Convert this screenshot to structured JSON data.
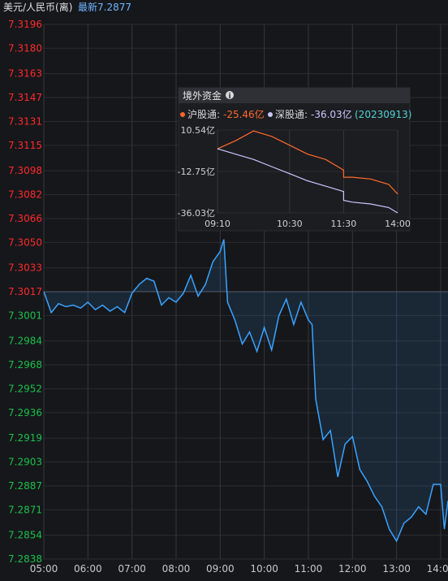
{
  "header": {
    "title": "美元/人民币(离)",
    "latest": "最新7.2877"
  },
  "colors": {
    "up": "#ff2a2a",
    "down": "#19c24a",
    "line": "#3aa3ff",
    "sh": "#ff6a2a",
    "sz": "#c9c7ff"
  },
  "chart_data": [
    {
      "type": "line",
      "title": "",
      "reference_price": 7.3017,
      "ylim": [
        7.2838,
        7.3196
      ],
      "y_ticks": [
        "7.3196",
        "7.3180",
        "7.3163",
        "7.3147",
        "7.3131",
        "7.3115",
        "7.3098",
        "7.3082",
        "7.3066",
        "7.3050",
        "7.3033",
        "7.3017",
        "7.3001",
        "7.2984",
        "7.2968",
        "7.2952",
        "7.2936",
        "7.2919",
        "7.2903",
        "7.2887",
        "7.2871",
        "7.2854",
        "7.2838"
      ],
      "x_ticks": [
        "05:00",
        "06:00",
        "07:00",
        "08:00",
        "09:00",
        "10:00",
        "11:00",
        "12:00",
        "13:00",
        "14:00"
      ],
      "grid": true,
      "series": [
        {
          "x": [
            "05:00",
            "05:10",
            "05:20",
            "05:30",
            "05:40",
            "05:50",
            "06:00",
            "06:10",
            "06:20",
            "06:30",
            "06:40",
            "06:50",
            "07:00",
            "07:10",
            "07:20",
            "07:30",
            "07:40",
            "07:50",
            "08:00",
            "08:10",
            "08:20",
            "08:30",
            "08:40",
            "08:50",
            "09:00",
            "09:05",
            "09:10",
            "09:20",
            "09:30",
            "09:40",
            "09:50",
            "10:00",
            "10:10",
            "10:20",
            "10:30",
            "10:40",
            "10:50",
            "11:00",
            "11:05",
            "11:10",
            "11:20",
            "11:30",
            "11:40",
            "11:50",
            "12:00",
            "12:10",
            "12:20",
            "12:30",
            "12:40",
            "12:50",
            "13:00",
            "13:10",
            "13:20",
            "13:30",
            "13:40",
            "13:50",
            "14:00",
            "14:05",
            "14:10"
          ],
          "values": [
            7.3017,
            7.3003,
            7.3009,
            7.3007,
            7.3008,
            7.3006,
            7.301,
            7.3005,
            7.3008,
            7.3004,
            7.3007,
            7.3003,
            7.3016,
            7.3022,
            7.3026,
            7.3024,
            7.3008,
            7.3013,
            7.301,
            7.3016,
            7.3028,
            7.3014,
            7.3022,
            7.3037,
            7.3044,
            7.3052,
            7.301,
            7.2998,
            7.2982,
            7.299,
            7.2977,
            7.2993,
            7.2978,
            7.3001,
            7.3012,
            7.2995,
            7.301,
            7.2998,
            7.2995,
            7.2945,
            7.2918,
            7.2924,
            7.2893,
            7.2915,
            7.292,
            7.2898,
            7.289,
            7.288,
            7.2873,
            7.2858,
            7.285,
            7.2862,
            7.2866,
            7.2873,
            7.2868,
            7.2888,
            7.2888,
            7.2858,
            7.2877
          ]
        }
      ]
    },
    {
      "type": "line",
      "title": "境外资金",
      "legend": [
        {
          "label": "沪股通:",
          "value": "-25.46亿"
        },
        {
          "label": "深股通:",
          "value": "-36.03亿"
        },
        {
          "label": "",
          "value": "(20230913)"
        }
      ],
      "y_ticks": [
        "10.54亿",
        "-12.75亿",
        "-36.03亿"
      ],
      "ylim": [
        -36.03,
        10.54
      ],
      "x_ticks": [
        "09:10",
        "10:30",
        "11:30",
        "14:00"
      ],
      "series": [
        {
          "name": "沪股通",
          "x": [
            "09:10",
            "09:30",
            "09:50",
            "10:10",
            "10:30",
            "10:50",
            "11:10",
            "11:30",
            "11:50",
            "12:10",
            "13:10",
            "13:30",
            "13:50",
            "14:00"
          ],
          "values": [
            0.0,
            4.5,
            10.0,
            7.0,
            2.0,
            -3.0,
            -6.0,
            -12.0,
            -15.0,
            -16.0,
            -16.0,
            -17.0,
            -20.0,
            -25.46
          ]
        },
        {
          "name": "深股通",
          "x": [
            "09:10",
            "09:30",
            "09:50",
            "10:10",
            "10:30",
            "10:50",
            "11:10",
            "11:30",
            "11:50",
            "12:10",
            "13:10",
            "13:30",
            "13:50",
            "14:00"
          ],
          "values": [
            0.0,
            -3.0,
            -6.0,
            -10.0,
            -14.0,
            -18.0,
            -21.0,
            -24.0,
            -27.0,
            -29.0,
            -30.0,
            -31.0,
            -33.0,
            -36.03
          ]
        }
      ]
    }
  ]
}
